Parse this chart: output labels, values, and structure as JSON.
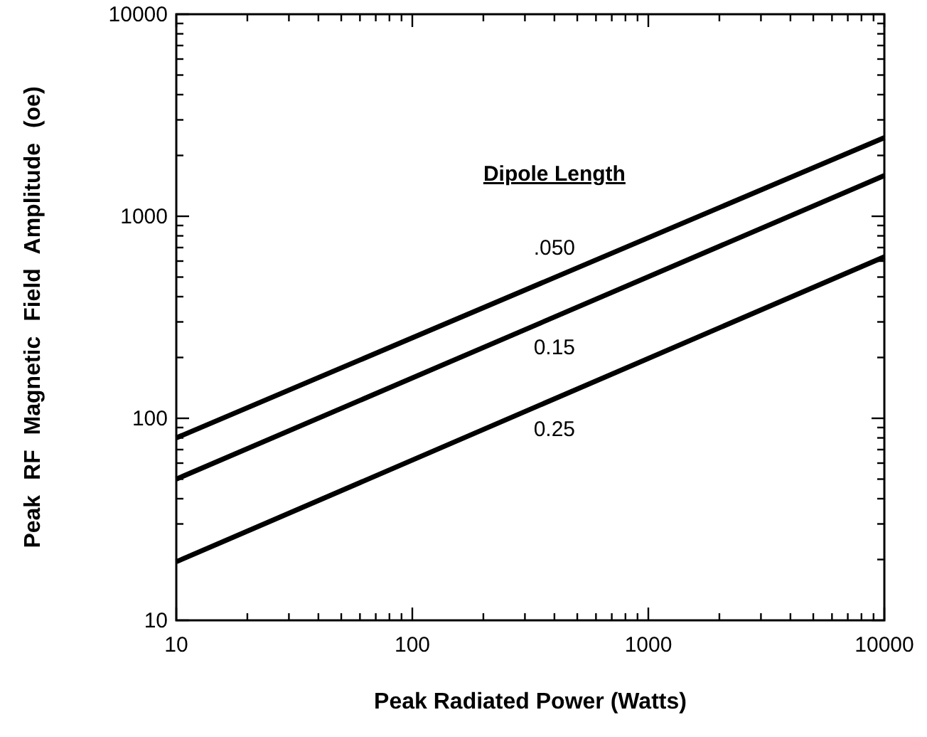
{
  "chart_data": {
    "type": "line",
    "xlabel": "Peak Radiated Power (Watts)",
    "ylabel": "Peak RF Magnetic Field Amplitude (oe)",
    "legend_title": "Dipole Length",
    "log": "xy",
    "xlim": [
      10,
      10000
    ],
    "ylim": [
      10,
      10000
    ],
    "xticks": [
      10,
      {
        "value": 20,
        "label": null
      },
      {
        "value": 30,
        "label": null
      },
      {
        "value": 40,
        "label": null
      },
      {
        "value": 50,
        "label": null
      },
      {
        "value": 60,
        "label": null
      },
      {
        "value": 70,
        "label": null
      },
      {
        "value": 80,
        "label": null
      },
      {
        "value": 90,
        "label": null
      },
      100,
      {
        "value": 200,
        "label": null
      },
      {
        "value": 300,
        "label": null
      },
      {
        "value": 400,
        "label": null
      },
      {
        "value": 500,
        "label": null
      },
      {
        "value": 600,
        "label": null
      },
      {
        "value": 700,
        "label": null
      },
      {
        "value": 800,
        "label": null
      },
      {
        "value": 900,
        "label": null
      },
      1000,
      {
        "value": 2000,
        "label": null
      },
      {
        "value": 3000,
        "label": null
      },
      {
        "value": 4000,
        "label": null
      },
      {
        "value": 5000,
        "label": null
      },
      {
        "value": 6000,
        "label": null
      },
      {
        "value": 7000,
        "label": null
      },
      {
        "value": 8000,
        "label": null
      },
      {
        "value": 9000,
        "label": null
      },
      10000
    ],
    "yticks": [
      10,
      {
        "value": 20,
        "label": null
      },
      {
        "value": 30,
        "label": null
      },
      {
        "value": 40,
        "label": null
      },
      {
        "value": 50,
        "label": null
      },
      {
        "value": 60,
        "label": null
      },
      {
        "value": 70,
        "label": null
      },
      {
        "value": 80,
        "label": null
      },
      {
        "value": 90,
        "label": null
      },
      100,
      {
        "value": 200,
        "label": null
      },
      {
        "value": 300,
        "label": null
      },
      {
        "value": 400,
        "label": null
      },
      {
        "value": 500,
        "label": null
      },
      {
        "value": 600,
        "label": null
      },
      {
        "value": 700,
        "label": null
      },
      {
        "value": 800,
        "label": null
      },
      {
        "value": 900,
        "label": null
      },
      1000,
      {
        "value": 2000,
        "label": null
      },
      {
        "value": 3000,
        "label": null
      },
      {
        "value": 4000,
        "label": null
      },
      {
        "value": 5000,
        "label": null
      },
      {
        "value": 6000,
        "label": null
      },
      {
        "value": 7000,
        "label": null
      },
      {
        "value": 8000,
        "label": null
      },
      {
        "value": 9000,
        "label": null
      },
      10000
    ],
    "x": [
      10,
      10000
    ],
    "grid": false,
    "line_style": "solid",
    "series": [
      {
        "name": ".050",
        "color": "#000000",
        "values": [
          80,
          2450
        ]
      },
      {
        "name": "0.15",
        "color": "#000000",
        "values": [
          50,
          1590
        ]
      },
      {
        "name": "0.25",
        "color": "#000000",
        "values": [
          19.5,
          630
        ]
      }
    ]
  }
}
